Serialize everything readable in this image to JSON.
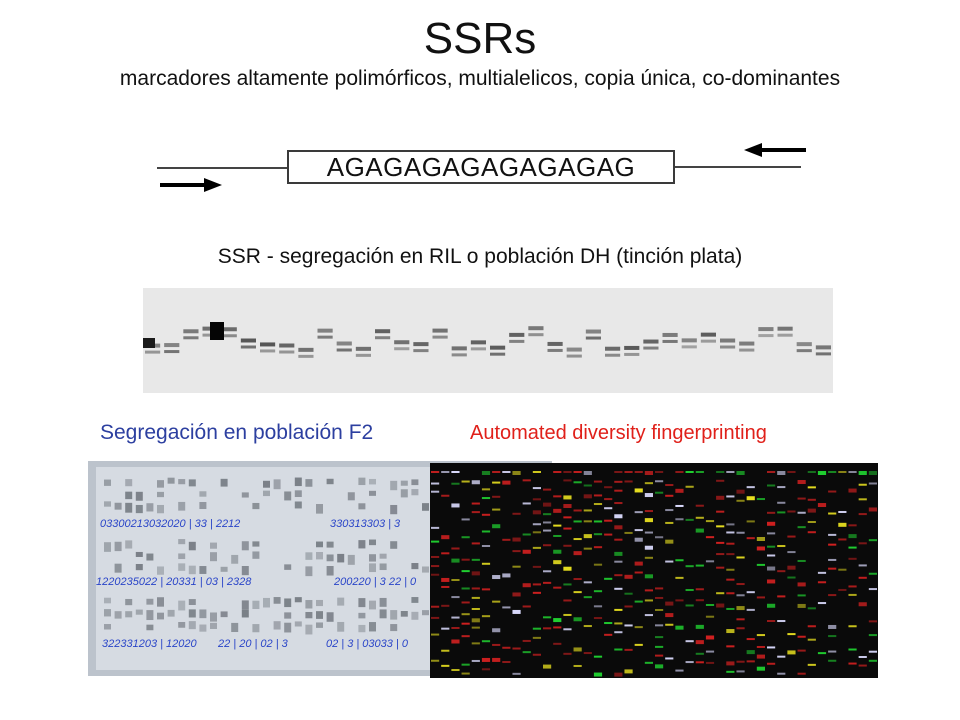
{
  "slide": {
    "title": "SSRs",
    "subtitle": "marcadores altamente polimórficos, multialelicos, copia única, co-dominantes"
  },
  "sequence": {
    "repeat": "AGAGAGAGAGAGAGAG"
  },
  "section1": {
    "title": "SSR - segregación en RIL o población DH (tinción plata)"
  },
  "section2": {
    "f2_title": "Segregación en población F2",
    "auto_title": "Automated diversity fingerprinting"
  },
  "f2_gel": {
    "row_labels": [
      "03300213032020 | 33 | 2212",
      "330313303 | 3",
      "1220235022 | 20331 | 03 | 2328",
      "200220 | 3 22 | 0",
      "322331203 | 12020",
      "22 | 20 | 02 | 3",
      "02 | 3 | 03033 | 0"
    ]
  },
  "colors": {
    "title_text": "#111111",
    "f2_title": "#2c3fa0",
    "auto_title": "#e0201a",
    "gel_bg": "#e8e8e8",
    "gel_band": "#3a3a3a",
    "f2_bg": "#bcc3cc",
    "f2_ink": "#2a45c8",
    "auto_bg": "#0a0a0a",
    "auto_yellow": "#e8e020",
    "auto_green": "#20d030",
    "auto_red": "#d02020",
    "auto_white": "#dcdcff"
  }
}
